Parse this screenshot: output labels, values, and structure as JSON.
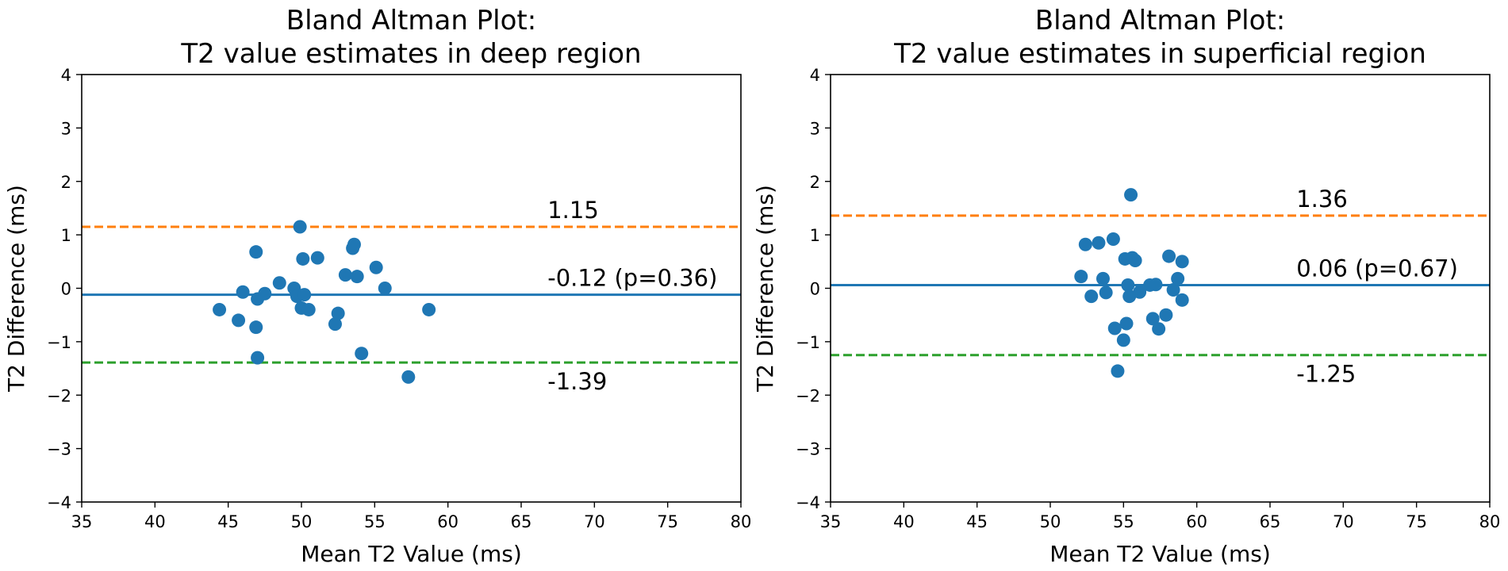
{
  "chart_data": [
    {
      "type": "scatter",
      "title_lines": [
        "Bland Altman Plot:",
        "T2 value estimates in deep region"
      ],
      "xlabel": "Mean T2 Value (ms)",
      "ylabel": "T2 Difference (ms)",
      "xlim": [
        35,
        80
      ],
      "ylim": [
        -4,
        4
      ],
      "xticks": [
        35,
        40,
        45,
        50,
        55,
        60,
        65,
        70,
        75,
        80
      ],
      "xtick_labels": [
        "35",
        "40",
        "45",
        "50",
        "55",
        "60",
        "65",
        "70",
        "75",
        "80"
      ],
      "yticks": [
        -4,
        -3,
        -2,
        -1,
        0,
        1,
        2,
        3,
        4
      ],
      "ytick_labels": [
        "−4",
        "−3",
        "−2",
        "−1",
        "0",
        "1",
        "2",
        "3",
        "4"
      ],
      "grid": false,
      "point_color": "#1f77b4",
      "points": [
        [
          44.4,
          -0.4
        ],
        [
          45.7,
          -0.6
        ],
        [
          46.0,
          -0.07
        ],
        [
          46.9,
          0.68
        ],
        [
          46.9,
          -0.73
        ],
        [
          47.0,
          -0.2
        ],
        [
          47.0,
          -1.3
        ],
        [
          47.5,
          -0.1
        ],
        [
          48.5,
          0.1
        ],
        [
          49.5,
          0.0
        ],
        [
          49.7,
          -0.15
        ],
        [
          49.9,
          1.15
        ],
        [
          50.0,
          -0.37
        ],
        [
          50.1,
          0.55
        ],
        [
          50.2,
          -0.12
        ],
        [
          50.5,
          -0.4
        ],
        [
          51.1,
          0.57
        ],
        [
          52.3,
          -0.67
        ],
        [
          52.5,
          -0.47
        ],
        [
          53.0,
          0.25
        ],
        [
          53.5,
          0.75
        ],
        [
          53.6,
          0.82
        ],
        [
          53.8,
          0.22
        ],
        [
          54.1,
          -1.22
        ],
        [
          55.1,
          0.39
        ],
        [
          55.7,
          0.0
        ],
        [
          57.3,
          -1.66
        ],
        [
          58.7,
          -0.4
        ]
      ],
      "reference_lines": [
        {
          "y": 1.15,
          "label": "1.15",
          "color": "#ff7f0e",
          "style": "dashed"
        },
        {
          "y": -0.12,
          "label": "-0.12 (p=0.36)",
          "color": "#1f77b4",
          "style": "solid"
        },
        {
          "y": -1.39,
          "label": "-1.39",
          "color": "#2ca02c",
          "style": "dashed"
        }
      ]
    },
    {
      "type": "scatter",
      "title_lines": [
        "Bland Altman Plot:",
        "T2 value estimates in superficial region"
      ],
      "xlabel": "Mean T2 Value (ms)",
      "ylabel": "T2 Difference (ms)",
      "xlim": [
        35,
        80
      ],
      "ylim": [
        -4,
        4
      ],
      "xticks": [
        35,
        40,
        45,
        50,
        55,
        60,
        65,
        70,
        75,
        80
      ],
      "xtick_labels": [
        "35",
        "40",
        "45",
        "50",
        "55",
        "60",
        "65",
        "70",
        "75",
        "80"
      ],
      "yticks": [
        -4,
        -3,
        -2,
        -1,
        0,
        1,
        2,
        3,
        4
      ],
      "ytick_labels": [
        "−4",
        "−3",
        "−2",
        "−1",
        "0",
        "1",
        "2",
        "3",
        "4"
      ],
      "grid": false,
      "point_color": "#1f77b4",
      "points": [
        [
          52.1,
          0.22
        ],
        [
          52.4,
          0.82
        ],
        [
          52.8,
          -0.15
        ],
        [
          53.3,
          0.85
        ],
        [
          53.6,
          0.18
        ],
        [
          53.8,
          -0.08
        ],
        [
          54.3,
          0.92
        ],
        [
          54.4,
          -0.75
        ],
        [
          54.6,
          -1.55
        ],
        [
          55.0,
          -0.97
        ],
        [
          55.1,
          0.55
        ],
        [
          55.2,
          -0.66
        ],
        [
          55.3,
          0.06
        ],
        [
          55.4,
          -0.15
        ],
        [
          55.5,
          1.75
        ],
        [
          55.6,
          0.57
        ],
        [
          55.8,
          0.52
        ],
        [
          56.1,
          -0.07
        ],
        [
          56.8,
          0.06
        ],
        [
          57.0,
          -0.57
        ],
        [
          57.2,
          0.07
        ],
        [
          57.4,
          -0.76
        ],
        [
          57.9,
          -0.5
        ],
        [
          58.1,
          0.6
        ],
        [
          58.4,
          -0.03
        ],
        [
          58.7,
          0.18
        ],
        [
          59.0,
          0.5
        ],
        [
          59.0,
          -0.22
        ]
      ],
      "reference_lines": [
        {
          "y": 1.36,
          "label": "1.36",
          "color": "#ff7f0e",
          "style": "dashed"
        },
        {
          "y": 0.06,
          "label": "0.06 (p=0.67)",
          "color": "#1f77b4",
          "style": "solid"
        },
        {
          "y": -1.25,
          "label": "-1.25",
          "color": "#2ca02c",
          "style": "dashed"
        }
      ]
    }
  ]
}
